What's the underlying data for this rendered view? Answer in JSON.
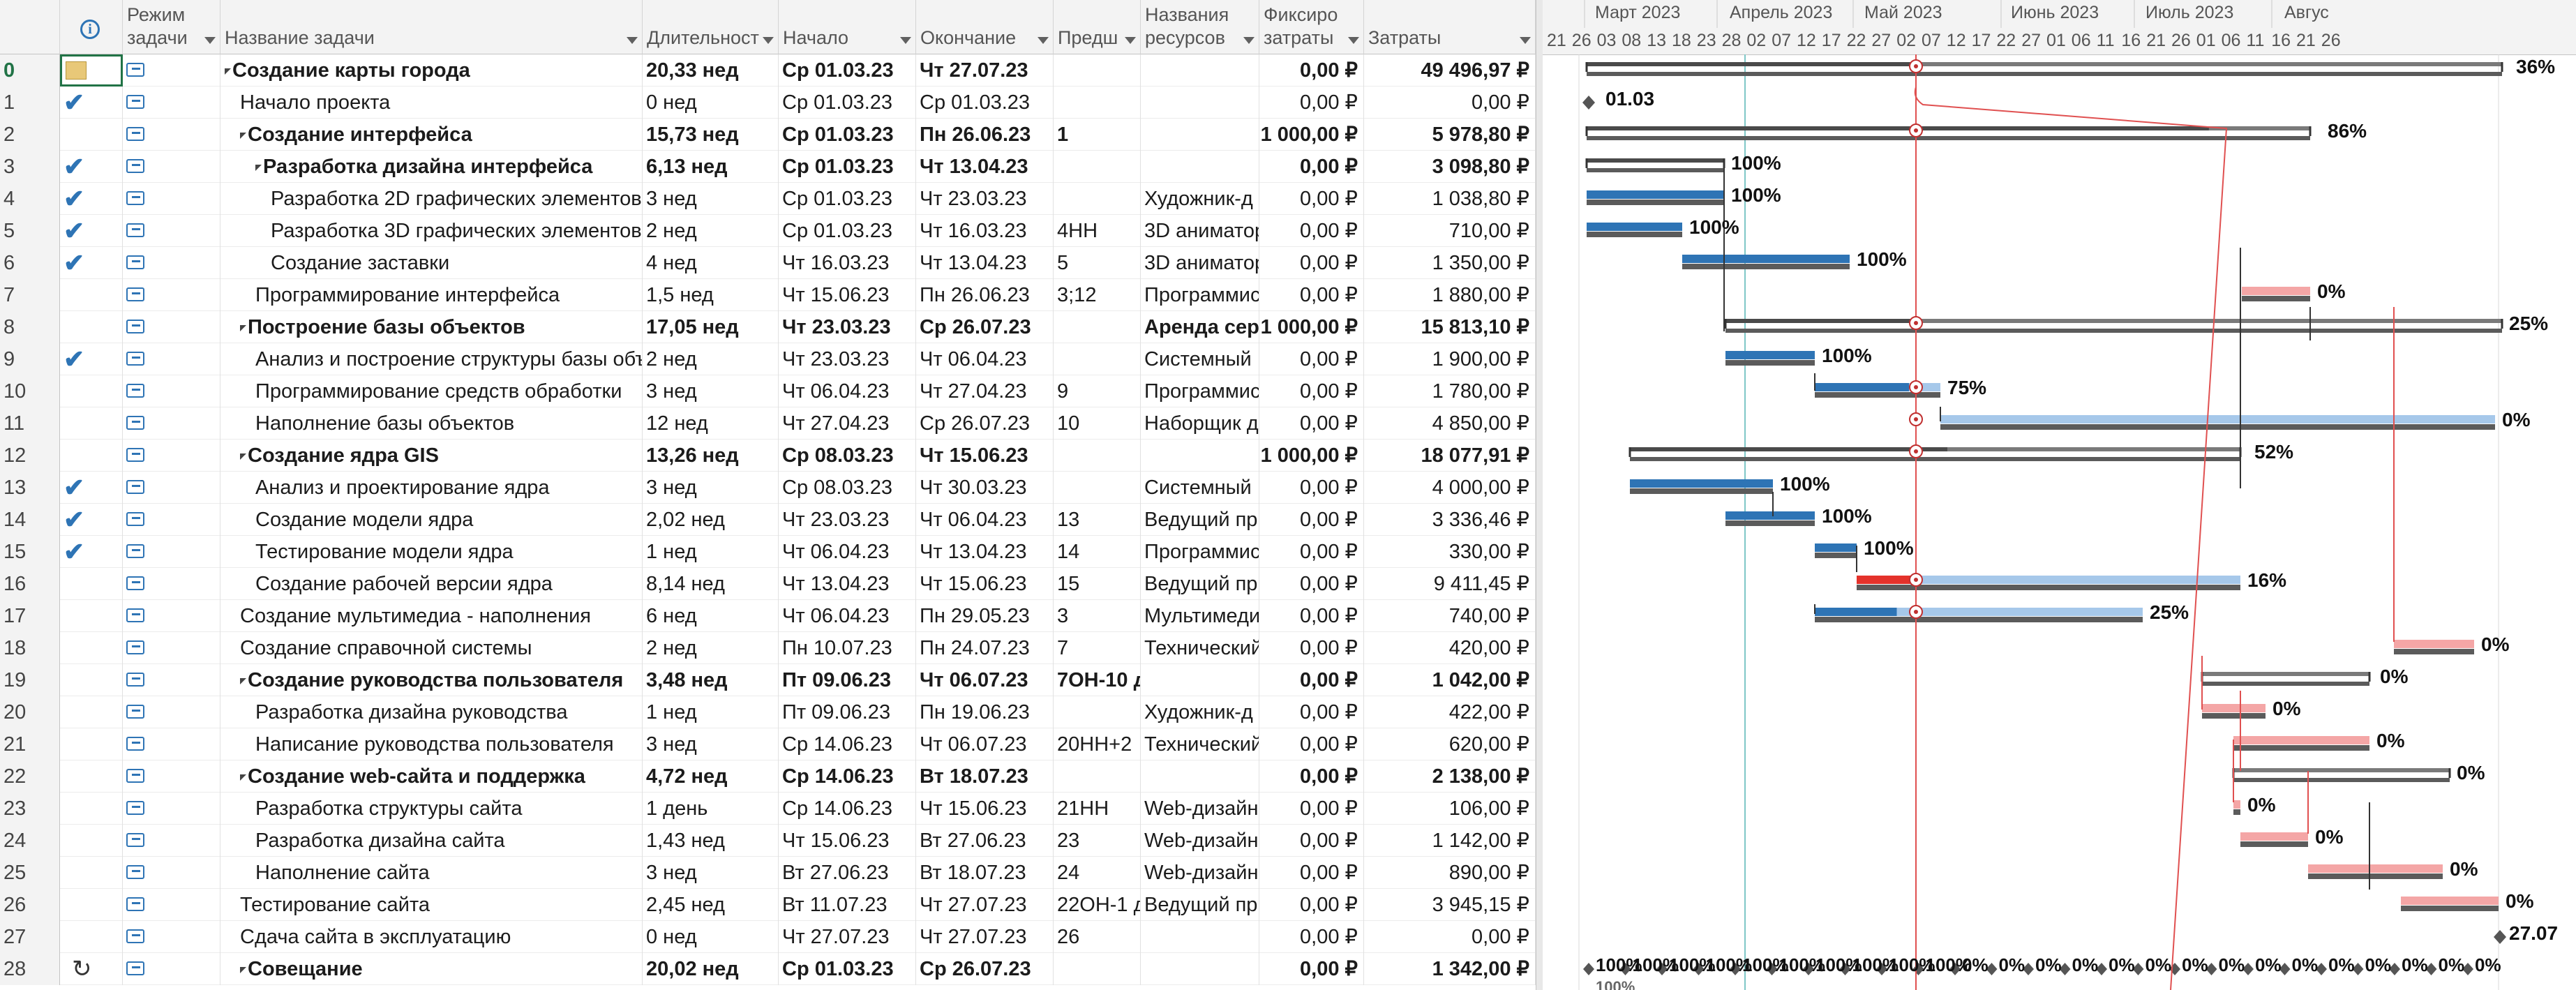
{
  "columns": {
    "mode": [
      "Режим",
      "задачи"
    ],
    "name": "Название задачи",
    "duration": "Длительност",
    "start": "Начало",
    "finish": "Окончание",
    "pred": "Предш",
    "resources": [
      "Названия",
      "ресурсов"
    ],
    "fixed": [
      "Фиксиро",
      "затраты"
    ],
    "cost": "Затраты"
  },
  "timeline": {
    "months": [
      "Март 2023",
      "Апрель 2023",
      "Май 2023",
      "Июнь 2023",
      "Июль 2023",
      "Авгус"
    ],
    "days": [
      "21",
      "26",
      "03",
      "08",
      "13",
      "18",
      "23",
      "28",
      "02",
      "07",
      "12",
      "17",
      "22",
      "27",
      "02",
      "07",
      "12",
      "17",
      "22",
      "27",
      "01",
      "06",
      "11",
      "16",
      "21",
      "26",
      "01",
      "06",
      "11",
      "16",
      "21",
      "26"
    ],
    "milestone_label": "01.03",
    "end_label": "27.07",
    "completion_markers": [
      "100%",
      "100%",
      "100%",
      "100%",
      "100%",
      "100%",
      "100%",
      "100%",
      "100%",
      "100%",
      "0%",
      "0%",
      "0%",
      "0%",
      "0%",
      "0%",
      "0%",
      "0%",
      "0%",
      "0%",
      "0%",
      "0%",
      "0%",
      "0%",
      "0%"
    ],
    "extra_pct": "100%"
  },
  "tasks": [
    {
      "id": "0",
      "check": false,
      "note": true,
      "name": "Создание карты города",
      "bold": true,
      "indent": 0,
      "summary": true,
      "duration": "20,33 нед",
      "start": "Ср 01.03.23",
      "finish": "Чт 27.07.23",
      "pred": "",
      "res": "",
      "fixed": "0,00 ₽",
      "cost": "49 496,97 ₽"
    },
    {
      "id": "1",
      "check": true,
      "name": "Начало проекта",
      "bold": false,
      "indent": 1,
      "summary": false,
      "duration": "0 нед",
      "start": "Ср 01.03.23",
      "finish": "Ср 01.03.23",
      "pred": "",
      "res": "",
      "fixed": "0,00 ₽",
      "cost": "0,00 ₽"
    },
    {
      "id": "2",
      "check": false,
      "name": "Создание интерфейса",
      "bold": true,
      "indent": 1,
      "summary": true,
      "duration": "15,73 нед",
      "start": "Ср 01.03.23",
      "finish": "Пн 26.06.23",
      "pred": "1",
      "res": "",
      "fixed": "1 000,00 ₽",
      "cost": "5 978,80 ₽"
    },
    {
      "id": "3",
      "check": true,
      "name": "Разработка дизайна интерфейса",
      "bold": true,
      "indent": 2,
      "summary": true,
      "duration": "6,13 нед",
      "start": "Ср 01.03.23",
      "finish": "Чт 13.04.23",
      "pred": "",
      "res": "",
      "fixed": "0,00 ₽",
      "cost": "3 098,80 ₽"
    },
    {
      "id": "4",
      "check": true,
      "name": "Разработка 2D графических элементов",
      "bold": false,
      "indent": 3,
      "summary": false,
      "duration": "3 нед",
      "start": "Ср 01.03.23",
      "finish": "Чт 23.03.23",
      "pred": "",
      "res": "Художник-д",
      "fixed": "0,00 ₽",
      "cost": "1 038,80 ₽"
    },
    {
      "id": "5",
      "check": true,
      "name": "Разработка 3D графических элементов",
      "bold": false,
      "indent": 3,
      "summary": false,
      "duration": "2 нед",
      "start": "Ср 01.03.23",
      "finish": "Чт 16.03.23",
      "pred": "4НН",
      "res": "3D аниматор",
      "fixed": "0,00 ₽",
      "cost": "710,00 ₽"
    },
    {
      "id": "6",
      "check": true,
      "name": "Создание заставки",
      "bold": false,
      "indent": 3,
      "summary": false,
      "duration": "4 нед",
      "start": "Чт 16.03.23",
      "finish": "Чт 13.04.23",
      "pred": "5",
      "res": "3D аниматор",
      "fixed": "0,00 ₽",
      "cost": "1 350,00 ₽"
    },
    {
      "id": "7",
      "check": false,
      "name": "Программирование интерфейса",
      "bold": false,
      "indent": 2,
      "summary": false,
      "duration": "1,5 нед",
      "start": "Чт 15.06.23",
      "finish": "Пн 26.06.23",
      "pred": "3;12",
      "res": "Программист",
      "fixed": "0,00 ₽",
      "cost": "1 880,00 ₽"
    },
    {
      "id": "8",
      "check": false,
      "name": "Построение базы объектов",
      "bold": true,
      "indent": 1,
      "summary": true,
      "duration": "17,05 нед",
      "start": "Чт 23.03.23",
      "finish": "Ср 26.07.23",
      "pred": "",
      "res": "Аренда сер",
      "fixed": "1 000,00 ₽",
      "cost": "15 813,10 ₽"
    },
    {
      "id": "9",
      "check": true,
      "name": "Анализ и построение структуры базы объектов",
      "bold": false,
      "indent": 2,
      "summary": false,
      "duration": "2 нед",
      "start": "Чт 23.03.23",
      "finish": "Чт 06.04.23",
      "pred": "",
      "res": "Системный",
      "fixed": "0,00 ₽",
      "cost": "1 900,00 ₽"
    },
    {
      "id": "10",
      "check": false,
      "name": "Программирование средств обработки",
      "bold": false,
      "indent": 2,
      "summary": false,
      "duration": "3 нед",
      "start": "Чт 06.04.23",
      "finish": "Чт 27.04.23",
      "pred": "9",
      "res": "Программист",
      "fixed": "0,00 ₽",
      "cost": "1 780,00 ₽"
    },
    {
      "id": "11",
      "check": false,
      "name": "Наполнение базы объектов",
      "bold": false,
      "indent": 2,
      "summary": false,
      "duration": "12 нед",
      "start": "Чт 27.04.23",
      "finish": "Ср 26.07.23",
      "pred": "10",
      "res": "Наборщик д",
      "fixed": "0,00 ₽",
      "cost": "4 850,00 ₽"
    },
    {
      "id": "12",
      "check": false,
      "name": "Создание ядра GIS",
      "bold": true,
      "indent": 1,
      "summary": true,
      "duration": "13,26 нед",
      "start": "Ср 08.03.23",
      "finish": "Чт 15.06.23",
      "pred": "",
      "res": "",
      "fixed": "1 000,00 ₽",
      "cost": "18 077,91 ₽"
    },
    {
      "id": "13",
      "check": true,
      "name": "Анализ и проектирование ядра",
      "bold": false,
      "indent": 2,
      "summary": false,
      "duration": "3 нед",
      "start": "Ср 08.03.23",
      "finish": "Чт 30.03.23",
      "pred": "",
      "res": "Системный",
      "fixed": "0,00 ₽",
      "cost": "4 000,00 ₽"
    },
    {
      "id": "14",
      "check": true,
      "name": "Создание модели ядра",
      "bold": false,
      "indent": 2,
      "summary": false,
      "duration": "2,02 нед",
      "start": "Чт 23.03.23",
      "finish": "Чт 06.04.23",
      "pred": "13",
      "res": "Ведущий пр",
      "fixed": "0,00 ₽",
      "cost": "3 336,46 ₽"
    },
    {
      "id": "15",
      "check": true,
      "name": "Тестирование модели ядра",
      "bold": false,
      "indent": 2,
      "summary": false,
      "duration": "1 нед",
      "start": "Чт 06.04.23",
      "finish": "Чт 13.04.23",
      "pred": "14",
      "res": "Программист",
      "fixed": "0,00 ₽",
      "cost": "330,00 ₽"
    },
    {
      "id": "16",
      "check": false,
      "name": "Создание рабочей версии ядра",
      "bold": false,
      "indent": 2,
      "summary": false,
      "duration": "8,14 нед",
      "start": "Чт 13.04.23",
      "finish": "Чт 15.06.23",
      "pred": "15",
      "res": "Ведущий пр",
      "fixed": "0,00 ₽",
      "cost": "9 411,45 ₽"
    },
    {
      "id": "17",
      "check": false,
      "name": "Создание мультимедиа - наполнения",
      "bold": false,
      "indent": 1,
      "summary": false,
      "duration": "6 нед",
      "start": "Чт 06.04.23",
      "finish": "Пн 29.05.23",
      "pred": "3",
      "res": "Мультимедиа",
      "fixed": "0,00 ₽",
      "cost": "740,00 ₽"
    },
    {
      "id": "18",
      "check": false,
      "name": "Создание справочной системы",
      "bold": false,
      "indent": 1,
      "summary": false,
      "duration": "2 нед",
      "start": "Пн 10.07.23",
      "finish": "Пн 24.07.23",
      "pred": "7",
      "res": "Технический",
      "fixed": "0,00 ₽",
      "cost": "420,00 ₽"
    },
    {
      "id": "19",
      "check": false,
      "name": "Создание руководства пользователя",
      "bold": true,
      "indent": 1,
      "summary": true,
      "duration": "3,48 нед",
      "start": "Пт 09.06.23",
      "finish": "Чт 06.07.23",
      "pred": "7ОН-10 д",
      "res": "",
      "fixed": "0,00 ₽",
      "cost": "1 042,00 ₽"
    },
    {
      "id": "20",
      "check": false,
      "name": "Разработка дизайна руководства",
      "bold": false,
      "indent": 2,
      "summary": false,
      "duration": "1 нед",
      "start": "Пт 09.06.23",
      "finish": "Пн 19.06.23",
      "pred": "",
      "res": "Художник-д",
      "fixed": "0,00 ₽",
      "cost": "422,00 ₽"
    },
    {
      "id": "21",
      "check": false,
      "name": "Написание руководства пользователя",
      "bold": false,
      "indent": 2,
      "summary": false,
      "duration": "3 нед",
      "start": "Ср 14.06.23",
      "finish": "Чт 06.07.23",
      "pred": "20НН+2",
      "res": "Технический",
      "fixed": "0,00 ₽",
      "cost": "620,00 ₽"
    },
    {
      "id": "22",
      "check": false,
      "name": "Создание web-сайта и поддержка",
      "bold": true,
      "indent": 1,
      "summary": true,
      "duration": "4,72 нед",
      "start": "Ср 14.06.23",
      "finish": "Вт 18.07.23",
      "pred": "",
      "res": "",
      "fixed": "0,00 ₽",
      "cost": "2 138,00 ₽"
    },
    {
      "id": "23",
      "check": false,
      "name": "Разработка структуры сайта",
      "bold": false,
      "indent": 2,
      "summary": false,
      "duration": "1 день",
      "start": "Ср 14.06.23",
      "finish": "Чт 15.06.23",
      "pred": "21НН",
      "res": "Web-дизайн",
      "fixed": "0,00 ₽",
      "cost": "106,00 ₽"
    },
    {
      "id": "24",
      "check": false,
      "name": "Разработка дизайна сайта",
      "bold": false,
      "indent": 2,
      "summary": false,
      "duration": "1,43 нед",
      "start": "Чт 15.06.23",
      "finish": "Вт 27.06.23",
      "pred": "23",
      "res": "Web-дизайн",
      "fixed": "0,00 ₽",
      "cost": "1 142,00 ₽"
    },
    {
      "id": "25",
      "check": false,
      "name": "Наполнение сайта",
      "bold": false,
      "indent": 2,
      "summary": false,
      "duration": "3 нед",
      "start": "Вт 27.06.23",
      "finish": "Вт 18.07.23",
      "pred": "24",
      "res": "Web-дизайн",
      "fixed": "0,00 ₽",
      "cost": "890,00 ₽"
    },
    {
      "id": "26",
      "check": false,
      "name": "Тестирование сайта",
      "bold": false,
      "indent": 1,
      "summary": false,
      "duration": "2,45 нед",
      "start": "Вт 11.07.23",
      "finish": "Чт 27.07.23",
      "pred": "22ОН-1 д",
      "res": "Ведущий пр",
      "fixed": "0,00 ₽",
      "cost": "3 945,15 ₽"
    },
    {
      "id": "27",
      "check": false,
      "name": "Сдача сайта в эксплуатацию",
      "bold": false,
      "indent": 1,
      "summary": false,
      "duration": "0 нед",
      "start": "Чт 27.07.23",
      "finish": "Чт 27.07.23",
      "pred": "26",
      "res": "",
      "fixed": "0,00 ₽",
      "cost": "0,00 ₽"
    },
    {
      "id": "28",
      "check": false,
      "recurring": true,
      "name": "Совещание",
      "bold": true,
      "indent": 1,
      "summary": true,
      "duration": "20,02 нед",
      "start": "Ср 01.03.23",
      "finish": "Ср 26.07.23",
      "pred": "",
      "res": "",
      "fixed": "0,00 ₽",
      "cost": "1 342,00 ₽"
    }
  ],
  "gantt_pct": [
    "36%",
    "",
    "86%",
    "100%",
    "100%",
    "100%",
    "100%",
    "0%",
    "25%",
    "100%",
    "75%",
    "0%",
    "52%",
    "100%",
    "100%",
    "100%",
    "16%",
    "25%",
    "0%",
    "0%",
    "0%",
    "0%",
    "0%",
    "0%",
    "0%",
    "0%",
    "0%",
    "27.07",
    ""
  ],
  "colors": {
    "done": "#2e74b5",
    "todo": "#a6c8ea",
    "late": "#e4322b",
    "critical": "#f4a6a6",
    "baseline": "#5b5b5b",
    "today": "#e05050"
  }
}
